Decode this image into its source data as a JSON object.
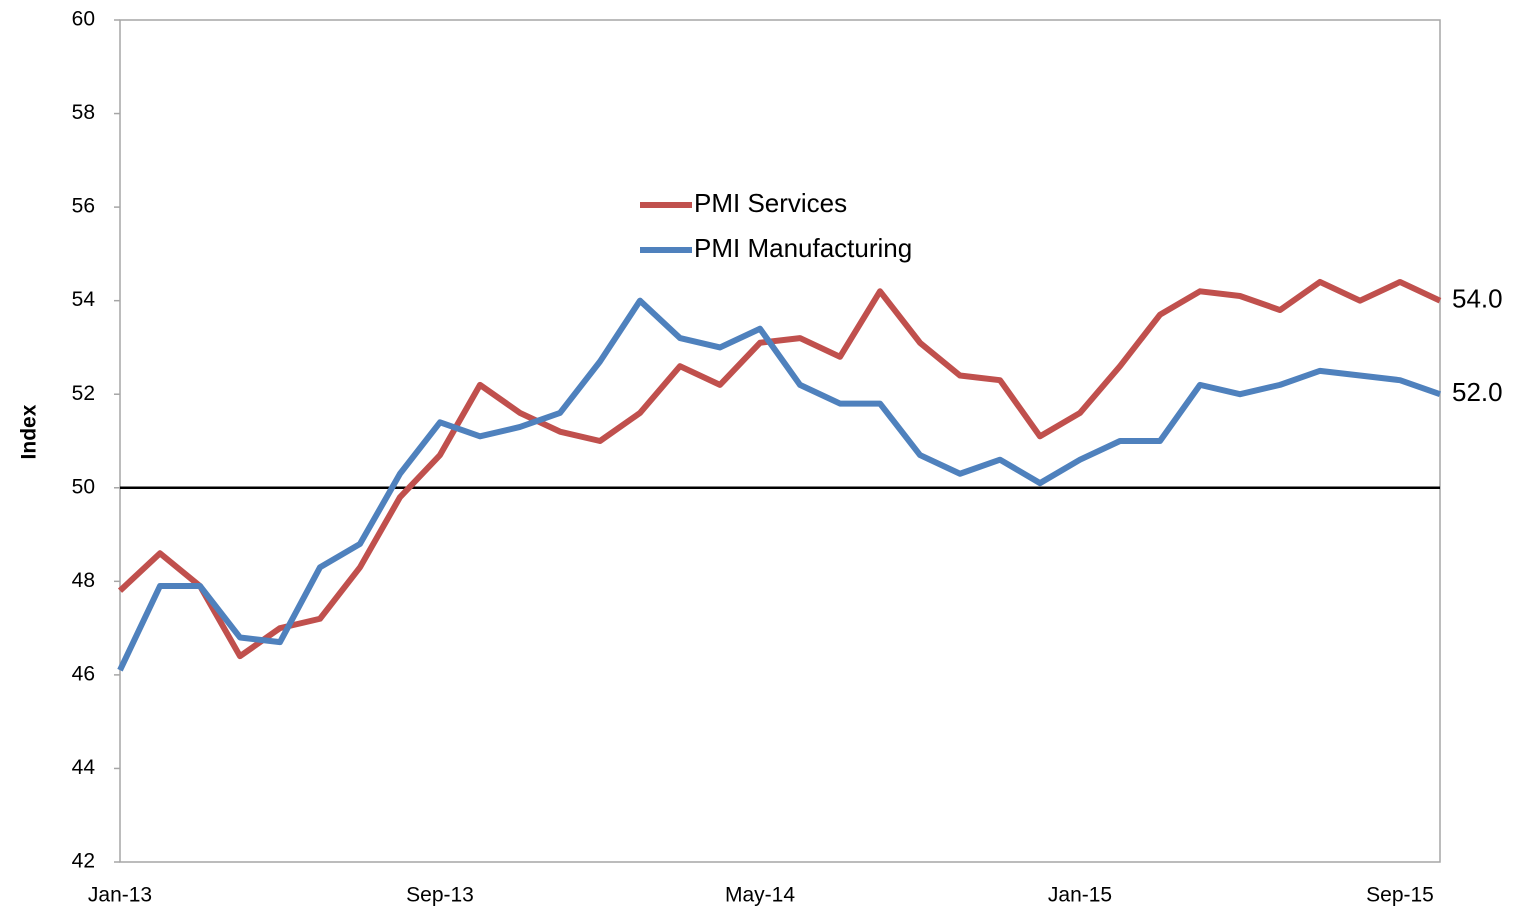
{
  "chart_data": {
    "type": "line",
    "y_label": "Index",
    "categories": [
      "Jan-13",
      null,
      null,
      null,
      null,
      null,
      null,
      null,
      "Sep-13",
      null,
      null,
      null,
      null,
      null,
      null,
      null,
      "May-14",
      null,
      null,
      null,
      null,
      null,
      null,
      null,
      "Jan-15",
      null,
      null,
      null,
      null,
      null,
      null,
      null,
      "Sep-15",
      null
    ],
    "series": [
      {
        "name": "PMI Services",
        "color": "#c0504d",
        "values": [
          47.8,
          48.6,
          47.9,
          46.4,
          47.0,
          47.2,
          48.3,
          49.8,
          50.7,
          52.2,
          51.6,
          51.2,
          51.0,
          51.6,
          52.6,
          52.2,
          53.1,
          53.2,
          52.8,
          54.2,
          53.1,
          52.4,
          52.3,
          51.1,
          51.6,
          52.6,
          53.7,
          54.2,
          54.1,
          53.8,
          54.4,
          54.0,
          54.4,
          54.0
        ],
        "value_labels": [
          null,
          null,
          null,
          null,
          null,
          null,
          null,
          null,
          null,
          null,
          null,
          null,
          null,
          null,
          null,
          null,
          null,
          null,
          null,
          null,
          null,
          null,
          null,
          null,
          null,
          null,
          null,
          null,
          null,
          null,
          null,
          null,
          null,
          "54.0"
        ]
      },
      {
        "name": "PMI Manufacturing",
        "color": "#4f81bd",
        "values": [
          46.1,
          47.9,
          47.9,
          46.8,
          46.7,
          48.3,
          48.8,
          50.3,
          51.4,
          51.1,
          51.3,
          51.6,
          52.7,
          54.0,
          53.2,
          53.0,
          53.4,
          52.2,
          51.8,
          51.8,
          50.7,
          50.3,
          50.6,
          50.1,
          50.6,
          51.0,
          51.0,
          52.2,
          52.0,
          52.2,
          52.5,
          52.4,
          52.3,
          52.0
        ],
        "value_labels": [
          null,
          null,
          null,
          null,
          null,
          null,
          null,
          null,
          null,
          null,
          null,
          null,
          null,
          null,
          null,
          null,
          null,
          null,
          null,
          null,
          null,
          null,
          null,
          null,
          null,
          null,
          null,
          null,
          null,
          null,
          null,
          null,
          null,
          "52.0"
        ]
      }
    ],
    "ylim": [
      42,
      60
    ],
    "yticks": [
      42,
      44,
      46,
      48,
      50,
      52,
      54,
      56,
      58,
      60
    ],
    "reference_line": 50,
    "legend": "upper center",
    "grid": false
  }
}
